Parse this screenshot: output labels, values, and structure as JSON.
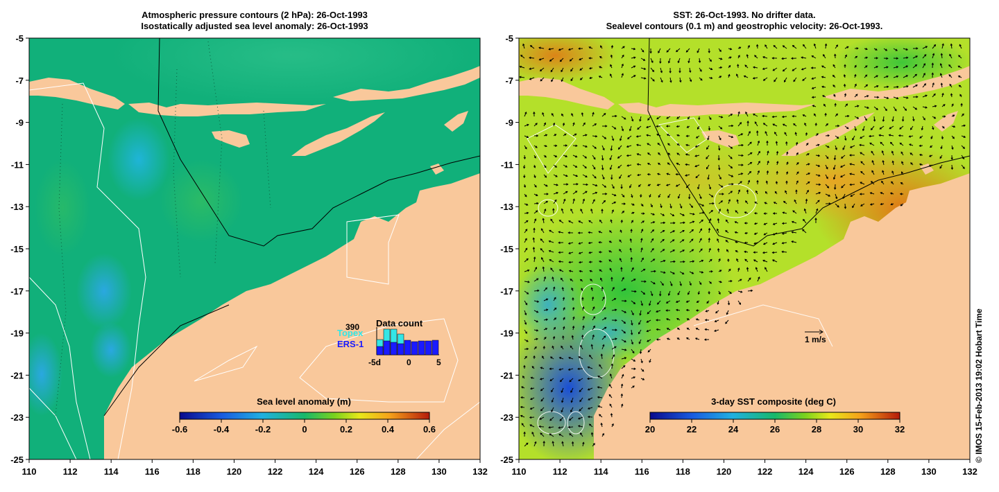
{
  "left_panel": {
    "title_line1": "Atmospheric pressure contours (2 hPa): 26-Oct-1993",
    "title_line2": "Isostatically adjusted sea level anomaly: 26-Oct-1993",
    "colorbar_label": "Sea level anomaly (m)",
    "colorbar_ticks": [
      "-0.6",
      "-0.4",
      "-0.2",
      "0",
      "0.2",
      "0.4",
      "0.6"
    ],
    "colorbar_values": [
      -0.6,
      -0.4,
      -0.2,
      0,
      0.2,
      0.4,
      0.6
    ],
    "data_count": {
      "title": "Data count",
      "max_label": "390",
      "topex_label": "Topex",
      "ers_label": "ERS-1",
      "axis_labels": [
        "-5d",
        "0",
        "5"
      ],
      "topex_color": "#33e6e6",
      "ers_color": "#1a1aff"
    }
  },
  "right_panel": {
    "title_line1": "SST: 26-Oct-1993. No drifter data.",
    "title_line2": "Sealevel contours (0.1 m) and geostrophic velocity: 26-Oct-1993.",
    "colorbar_label": "3-day SST composite (deg C)",
    "colorbar_ticks": [
      "20",
      "22",
      "24",
      "26",
      "28",
      "30",
      "32"
    ],
    "colorbar_values": [
      20,
      22,
      24,
      26,
      28,
      30,
      32
    ],
    "scale_arrow_label": "1 m/s"
  },
  "axes": {
    "lon_ticks": [
      "110",
      "112",
      "114",
      "116",
      "118",
      "120",
      "122",
      "124",
      "126",
      "128",
      "130",
      "132"
    ],
    "lat_ticks": [
      "-5",
      "-7",
      "-9",
      "-11",
      "-13",
      "-15",
      "-17",
      "-19",
      "-21",
      "-23",
      "-25"
    ],
    "lon_range": [
      110,
      132
    ],
    "lat_range": [
      -25,
      -5
    ]
  },
  "credit": "© IMOS 15-Feb-2013 19:02 Hobart Time",
  "colors": {
    "land": "#f9c89b",
    "ocean_left": "#11b07a",
    "ocean_right_warm": "#b4e02a"
  }
}
